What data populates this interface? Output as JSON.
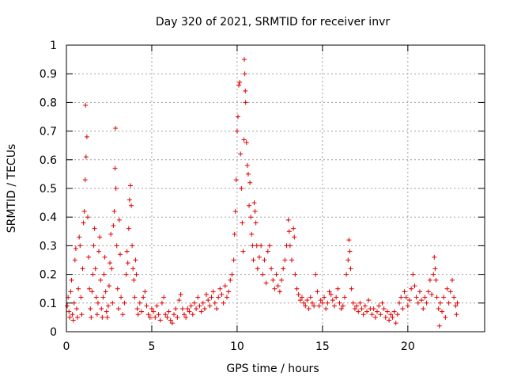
{
  "chart_data": {
    "type": "scatter",
    "title": "Day 320 of 2021, SRMTID for receiver invr",
    "xlabel": "GPS time / hours",
    "ylabel": "SRMTID / TECUs",
    "xlim": [
      0,
      24.5
    ],
    "ylim": [
      0,
      1
    ],
    "x_ticks": [
      0,
      5,
      10,
      15,
      20
    ],
    "x_tick_labels": [
      "0",
      "5",
      "10",
      "15",
      "20"
    ],
    "y_ticks": [
      0,
      0.1,
      0.2,
      0.3,
      0.4,
      0.5,
      0.6,
      0.7,
      0.8,
      0.9,
      1
    ],
    "y_tick_labels": [
      "0",
      "0.1",
      "0.2",
      "0.3",
      "0.4",
      "0.5",
      "0.6",
      "0.7",
      "0.8",
      "0.9",
      "1"
    ],
    "grid": true,
    "marker": "plus",
    "color": "#e00000",
    "series": [
      {
        "name": "SRMTID",
        "points": [
          [
            0.05,
            0.09
          ],
          [
            0.1,
            0.12
          ],
          [
            0.15,
            0.07
          ],
          [
            0.2,
            0.05
          ],
          [
            0.25,
            0.14
          ],
          [
            0.3,
            0.18
          ],
          [
            0.35,
            0.06
          ],
          [
            0.4,
            0.04
          ],
          [
            0.45,
            0.1
          ],
          [
            0.5,
            0.25
          ],
          [
            0.55,
            0.29
          ],
          [
            0.6,
            0.08
          ],
          [
            0.65,
            0.05
          ],
          [
            0.7,
            0.15
          ],
          [
            0.75,
            0.33
          ],
          [
            0.8,
            0.3
          ],
          [
            0.85,
            0.12
          ],
          [
            0.9,
            0.06
          ],
          [
            0.95,
            0.22
          ],
          [
            1.0,
            0.38
          ],
          [
            1.05,
            0.42
          ],
          [
            1.1,
            0.53
          ],
          [
            1.12,
            0.79
          ],
          [
            1.15,
            0.61
          ],
          [
            1.2,
            0.68
          ],
          [
            1.25,
            0.4
          ],
          [
            1.3,
            0.26
          ],
          [
            1.35,
            0.15
          ],
          [
            1.4,
            0.08
          ],
          [
            1.45,
            0.05
          ],
          [
            1.5,
            0.14
          ],
          [
            1.55,
            0.2
          ],
          [
            1.6,
            0.3
          ],
          [
            1.65,
            0.36
          ],
          [
            1.7,
            0.22
          ],
          [
            1.75,
            0.12
          ],
          [
            1.8,
            0.06
          ],
          [
            1.85,
            0.1
          ],
          [
            1.9,
            0.28
          ],
          [
            1.95,
            0.33
          ],
          [
            2.0,
            0.18
          ],
          [
            2.05,
            0.08
          ],
          [
            2.1,
            0.05
          ],
          [
            2.15,
            0.12
          ],
          [
            2.2,
            0.2
          ],
          [
            2.25,
            0.26
          ],
          [
            2.3,
            0.14
          ],
          [
            2.35,
            0.07
          ],
          [
            2.4,
            0.05
          ],
          [
            2.45,
            0.09
          ],
          [
            2.5,
            0.16
          ],
          [
            2.55,
            0.24
          ],
          [
            2.6,
            0.34
          ],
          [
            2.65,
            0.22
          ],
          [
            2.7,
            0.1
          ],
          [
            2.75,
            0.37
          ],
          [
            2.8,
            0.42
          ],
          [
            2.85,
            0.57
          ],
          [
            2.88,
            0.71
          ],
          [
            2.9,
            0.5
          ],
          [
            2.95,
            0.3
          ],
          [
            3.0,
            0.15
          ],
          [
            3.05,
            0.08
          ],
          [
            3.1,
            0.39
          ],
          [
            3.15,
            0.27
          ],
          [
            3.2,
            0.12
          ],
          [
            3.3,
            0.06
          ],
          [
            3.4,
            0.1
          ],
          [
            3.5,
            0.2
          ],
          [
            3.55,
            0.28
          ],
          [
            3.6,
            0.24
          ],
          [
            3.65,
            0.36
          ],
          [
            3.7,
            0.46
          ],
          [
            3.75,
            0.51
          ],
          [
            3.8,
            0.44
          ],
          [
            3.85,
            0.3
          ],
          [
            3.9,
            0.22
          ],
          [
            3.95,
            0.18
          ],
          [
            4.0,
            0.12
          ],
          [
            4.05,
            0.25
          ],
          [
            4.1,
            0.2
          ],
          [
            4.15,
            0.08
          ],
          [
            4.2,
            0.06
          ],
          [
            4.3,
            0.1
          ],
          [
            4.4,
            0.07
          ],
          [
            4.5,
            0.12
          ],
          [
            4.6,
            0.14
          ],
          [
            4.7,
            0.09
          ],
          [
            4.8,
            0.06
          ],
          [
            4.9,
            0.05
          ],
          [
            5.0,
            0.08
          ],
          [
            5.1,
            0.07
          ],
          [
            5.2,
            0.05
          ],
          [
            5.3,
            0.09
          ],
          [
            5.4,
            0.06
          ],
          [
            5.5,
            0.04
          ],
          [
            5.6,
            0.1
          ],
          [
            5.7,
            0.12
          ],
          [
            5.8,
            0.06
          ],
          [
            5.9,
            0.05
          ],
          [
            6.0,
            0.07
          ],
          [
            6.1,
            0.04
          ],
          [
            6.2,
            0.03
          ],
          [
            6.3,
            0.06
          ],
          [
            6.4,
            0.08
          ],
          [
            6.5,
            0.05
          ],
          [
            6.6,
            0.11
          ],
          [
            6.7,
            0.13
          ],
          [
            6.8,
            0.08
          ],
          [
            6.9,
            0.06
          ],
          [
            7.0,
            0.05
          ],
          [
            7.1,
            0.08
          ],
          [
            7.2,
            0.07
          ],
          [
            7.3,
            0.09
          ],
          [
            7.4,
            0.06
          ],
          [
            7.5,
            0.1
          ],
          [
            7.6,
            0.08
          ],
          [
            7.7,
            0.12
          ],
          [
            7.8,
            0.09
          ],
          [
            7.9,
            0.07
          ],
          [
            8.0,
            0.1
          ],
          [
            8.1,
            0.08
          ],
          [
            8.2,
            0.13
          ],
          [
            8.3,
            0.11
          ],
          [
            8.4,
            0.09
          ],
          [
            8.5,
            0.12
          ],
          [
            8.6,
            0.14
          ],
          [
            8.7,
            0.1
          ],
          [
            8.8,
            0.08
          ],
          [
            8.9,
            0.12
          ],
          [
            9.0,
            0.15
          ],
          [
            9.1,
            0.13
          ],
          [
            9.2,
            0.1
          ],
          [
            9.3,
            0.16
          ],
          [
            9.4,
            0.12
          ],
          [
            9.5,
            0.14
          ],
          [
            9.6,
            0.18
          ],
          [
            9.7,
            0.2
          ],
          [
            9.8,
            0.25
          ],
          [
            9.85,
            0.34
          ],
          [
            9.9,
            0.42
          ],
          [
            9.95,
            0.53
          ],
          [
            10.0,
            0.7
          ],
          [
            10.05,
            0.75
          ],
          [
            10.1,
            0.86
          ],
          [
            10.15,
            0.87
          ],
          [
            10.2,
            0.62
          ],
          [
            10.25,
            0.5
          ],
          [
            10.3,
            0.38
          ],
          [
            10.35,
            0.28
          ],
          [
            10.4,
            0.67
          ],
          [
            10.42,
            0.95
          ],
          [
            10.45,
            0.9
          ],
          [
            10.48,
            0.84
          ],
          [
            10.5,
            0.8
          ],
          [
            10.55,
            0.66
          ],
          [
            10.6,
            0.58
          ],
          [
            10.65,
            0.55
          ],
          [
            10.7,
            0.44
          ],
          [
            10.75,
            0.52
          ],
          [
            10.8,
            0.4
          ],
          [
            10.85,
            0.34
          ],
          [
            10.9,
            0.3
          ],
          [
            10.95,
            0.25
          ],
          [
            11.0,
            0.45
          ],
          [
            11.05,
            0.42
          ],
          [
            11.1,
            0.38
          ],
          [
            11.15,
            0.3
          ],
          [
            11.2,
            0.22
          ],
          [
            11.3,
            0.26
          ],
          [
            11.4,
            0.3
          ],
          [
            11.5,
            0.2
          ],
          [
            11.6,
            0.25
          ],
          [
            11.7,
            0.17
          ],
          [
            11.8,
            0.28
          ],
          [
            11.9,
            0.3
          ],
          [
            12.0,
            0.22
          ],
          [
            12.1,
            0.18
          ],
          [
            12.2,
            0.15
          ],
          [
            12.3,
            0.2
          ],
          [
            12.4,
            0.16
          ],
          [
            12.5,
            0.14
          ],
          [
            12.6,
            0.18
          ],
          [
            12.7,
            0.22
          ],
          [
            12.8,
            0.25
          ],
          [
            12.9,
            0.3
          ],
          [
            13.0,
            0.39
          ],
          [
            13.05,
            0.35
          ],
          [
            13.1,
            0.3
          ],
          [
            13.2,
            0.25
          ],
          [
            13.3,
            0.36
          ],
          [
            13.35,
            0.33
          ],
          [
            13.4,
            0.2
          ],
          [
            13.5,
            0.15
          ],
          [
            13.6,
            0.13
          ],
          [
            13.7,
            0.11
          ],
          [
            13.8,
            0.12
          ],
          [
            13.9,
            0.1
          ],
          [
            14.0,
            0.09
          ],
          [
            14.1,
            0.11
          ],
          [
            14.2,
            0.08
          ],
          [
            14.3,
            0.12
          ],
          [
            14.4,
            0.1
          ],
          [
            14.5,
            0.09
          ],
          [
            14.6,
            0.2
          ],
          [
            14.7,
            0.14
          ],
          [
            14.8,
            0.09
          ],
          [
            14.9,
            0.11
          ],
          [
            15.0,
            0.1
          ],
          [
            15.1,
            0.12
          ],
          [
            15.2,
            0.08
          ],
          [
            15.3,
            0.1
          ],
          [
            15.4,
            0.14
          ],
          [
            15.5,
            0.13
          ],
          [
            15.6,
            0.11
          ],
          [
            15.7,
            0.09
          ],
          [
            15.8,
            0.12
          ],
          [
            15.9,
            0.15
          ],
          [
            16.0,
            0.1
          ],
          [
            16.1,
            0.08
          ],
          [
            16.2,
            0.09
          ],
          [
            16.3,
            0.12
          ],
          [
            16.4,
            0.2
          ],
          [
            16.5,
            0.25
          ],
          [
            16.55,
            0.32
          ],
          [
            16.6,
            0.28
          ],
          [
            16.65,
            0.22
          ],
          [
            16.7,
            0.15
          ],
          [
            16.8,
            0.1
          ],
          [
            16.9,
            0.08
          ],
          [
            17.0,
            0.09
          ],
          [
            17.1,
            0.07
          ],
          [
            17.2,
            0.1
          ],
          [
            17.3,
            0.08
          ],
          [
            17.4,
            0.06
          ],
          [
            17.5,
            0.09
          ],
          [
            17.6,
            0.07
          ],
          [
            17.7,
            0.11
          ],
          [
            17.8,
            0.08
          ],
          [
            17.9,
            0.06
          ],
          [
            18.0,
            0.08
          ],
          [
            18.1,
            0.05
          ],
          [
            18.2,
            0.07
          ],
          [
            18.3,
            0.09
          ],
          [
            18.4,
            0.06
          ],
          [
            18.5,
            0.1
          ],
          [
            18.6,
            0.08
          ],
          [
            18.7,
            0.05
          ],
          [
            18.8,
            0.07
          ],
          [
            18.9,
            0.04
          ],
          [
            19.0,
            0.06
          ],
          [
            19.1,
            0.05
          ],
          [
            19.2,
            0.07
          ],
          [
            19.3,
            0.03
          ],
          [
            19.4,
            0.06
          ],
          [
            19.5,
            0.1
          ],
          [
            19.6,
            0.12
          ],
          [
            19.7,
            0.08
          ],
          [
            19.8,
            0.14
          ],
          [
            19.9,
            0.12
          ],
          [
            20.0,
            0.09
          ],
          [
            20.1,
            0.11
          ],
          [
            20.2,
            0.15
          ],
          [
            20.3,
            0.2
          ],
          [
            20.4,
            0.16
          ],
          [
            20.5,
            0.12
          ],
          [
            20.6,
            0.1
          ],
          [
            20.7,
            0.14
          ],
          [
            20.8,
            0.11
          ],
          [
            20.9,
            0.08
          ],
          [
            21.0,
            0.12
          ],
          [
            21.1,
            0.1
          ],
          [
            21.2,
            0.14
          ],
          [
            21.3,
            0.18
          ],
          [
            21.4,
            0.13
          ],
          [
            21.5,
            0.2
          ],
          [
            21.55,
            0.26
          ],
          [
            21.6,
            0.22
          ],
          [
            21.65,
            0.18
          ],
          [
            21.7,
            0.12
          ],
          [
            21.8,
            0.08
          ],
          [
            21.85,
            0.02
          ],
          [
            21.9,
            0.1
          ],
          [
            22.0,
            0.07
          ],
          [
            22.1,
            0.12
          ],
          [
            22.2,
            0.05
          ],
          [
            22.3,
            0.15
          ],
          [
            22.4,
            0.1
          ],
          [
            22.5,
            0.14
          ],
          [
            22.6,
            0.18
          ],
          [
            22.7,
            0.12
          ],
          [
            22.8,
            0.09
          ],
          [
            22.85,
            0.06
          ],
          [
            22.9,
            0.1
          ]
        ]
      }
    ]
  }
}
